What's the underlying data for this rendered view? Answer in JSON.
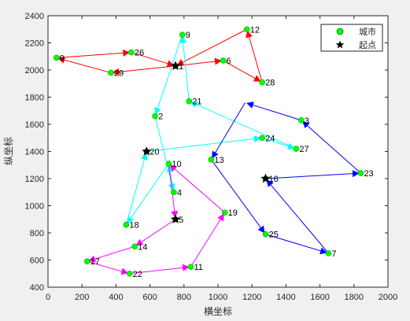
{
  "chart_data": {
    "type": "scatter",
    "xlabel": "横坐标",
    "ylabel": "纵坐标",
    "xlim": [
      0,
      2000
    ],
    "ylim": [
      400,
      2400
    ],
    "x_ticks": [
      0,
      200,
      400,
      600,
      800,
      1000,
      1200,
      1400,
      1600,
      1800,
      2000
    ],
    "y_ticks": [
      400,
      600,
      800,
      1000,
      1200,
      1400,
      1600,
      1800,
      2000,
      2200,
      2400
    ],
    "grid": false,
    "legend_location": "top-right",
    "legend": [
      {
        "label": "城市",
        "marker": "circle",
        "color": "#00ff00"
      },
      {
        "label": "起点",
        "marker": "star",
        "color": "#000000"
      }
    ],
    "cities": [
      {
        "id": "1",
        "x": 750,
        "y": 2030
      },
      {
        "id": "2",
        "x": 630,
        "y": 1660
      },
      {
        "id": "3",
        "x": 1490,
        "y": 1630
      },
      {
        "id": "4",
        "x": 740,
        "y": 1100
      },
      {
        "id": "5",
        "x": 750,
        "y": 900
      },
      {
        "id": "6",
        "x": 1030,
        "y": 2070
      },
      {
        "id": "7",
        "x": 1650,
        "y": 650
      },
      {
        "id": "9",
        "x": 790,
        "y": 2260
      },
      {
        "id": "9",
        "x": 50,
        "y": 2090
      },
      {
        "id": "10",
        "x": 710,
        "y": 1310
      },
      {
        "id": "11",
        "x": 840,
        "y": 550
      },
      {
        "id": "12",
        "x": 1170,
        "y": 2300
      },
      {
        "id": "13",
        "x": 960,
        "y": 1340
      },
      {
        "id": "14",
        "x": 510,
        "y": 700
      },
      {
        "id": "16",
        "x": 1280,
        "y": 1200
      },
      {
        "id": "17",
        "x": 230,
        "y": 590
      },
      {
        "id": "18",
        "x": 460,
        "y": 860
      },
      {
        "id": "19",
        "x": 1040,
        "y": 950
      },
      {
        "id": "20",
        "x": 580,
        "y": 1400
      },
      {
        "id": "21",
        "x": 830,
        "y": 1770
      },
      {
        "id": "22",
        "x": 480,
        "y": 500
      },
      {
        "id": "23",
        "x": 1840,
        "y": 1240
      },
      {
        "id": "24",
        "x": 1260,
        "y": 1500
      },
      {
        "id": "25",
        "x": 1280,
        "y": 790
      },
      {
        "id": "26",
        "x": 490,
        "y": 2130
      },
      {
        "id": "27",
        "x": 1460,
        "y": 1420
      },
      {
        "id": "28",
        "x": 1260,
        "y": 1910
      },
      {
        "id": "29",
        "x": 370,
        "y": 1980
      }
    ],
    "start_points": [
      {
        "x": 750,
        "y": 2030
      },
      {
        "x": 580,
        "y": 1400
      },
      {
        "x": 1280,
        "y": 1200
      },
      {
        "x": 750,
        "y": 900
      }
    ],
    "routes": [
      {
        "color": "#ff0000",
        "points": [
          [
            750,
            2030
          ],
          [
            1030,
            2070
          ],
          [
            1260,
            1910
          ],
          [
            1170,
            2300
          ],
          [
            750,
            2030
          ],
          [
            370,
            1980
          ],
          [
            50,
            2090
          ],
          [
            490,
            2130
          ],
          [
            750,
            2030
          ]
        ]
      },
      {
        "color": "#00ffff",
        "points": [
          [
            580,
            1400
          ],
          [
            1260,
            1500
          ],
          [
            1460,
            1420
          ],
          [
            830,
            1770
          ],
          [
            790,
            2260
          ],
          [
            630,
            1660
          ],
          [
            740,
            1100
          ],
          [
            710,
            1310
          ],
          [
            460,
            860
          ],
          [
            580,
            1400
          ]
        ]
      },
      {
        "color": "#0000ff",
        "points": [
          [
            1280,
            1200
          ],
          [
            1840,
            1240
          ],
          [
            1490,
            1630
          ],
          [
            1160,
            1760
          ],
          [
            960,
            1340
          ],
          [
            1280,
            790
          ],
          [
            1650,
            650
          ],
          [
            1280,
            1200
          ]
        ]
      },
      {
        "color": "#ff00ff",
        "points": [
          [
            750,
            900
          ],
          [
            510,
            700
          ],
          [
            230,
            590
          ],
          [
            480,
            500
          ],
          [
            840,
            550
          ],
          [
            1040,
            950
          ],
          [
            710,
            1310
          ],
          [
            750,
            900
          ]
        ]
      }
    ]
  }
}
